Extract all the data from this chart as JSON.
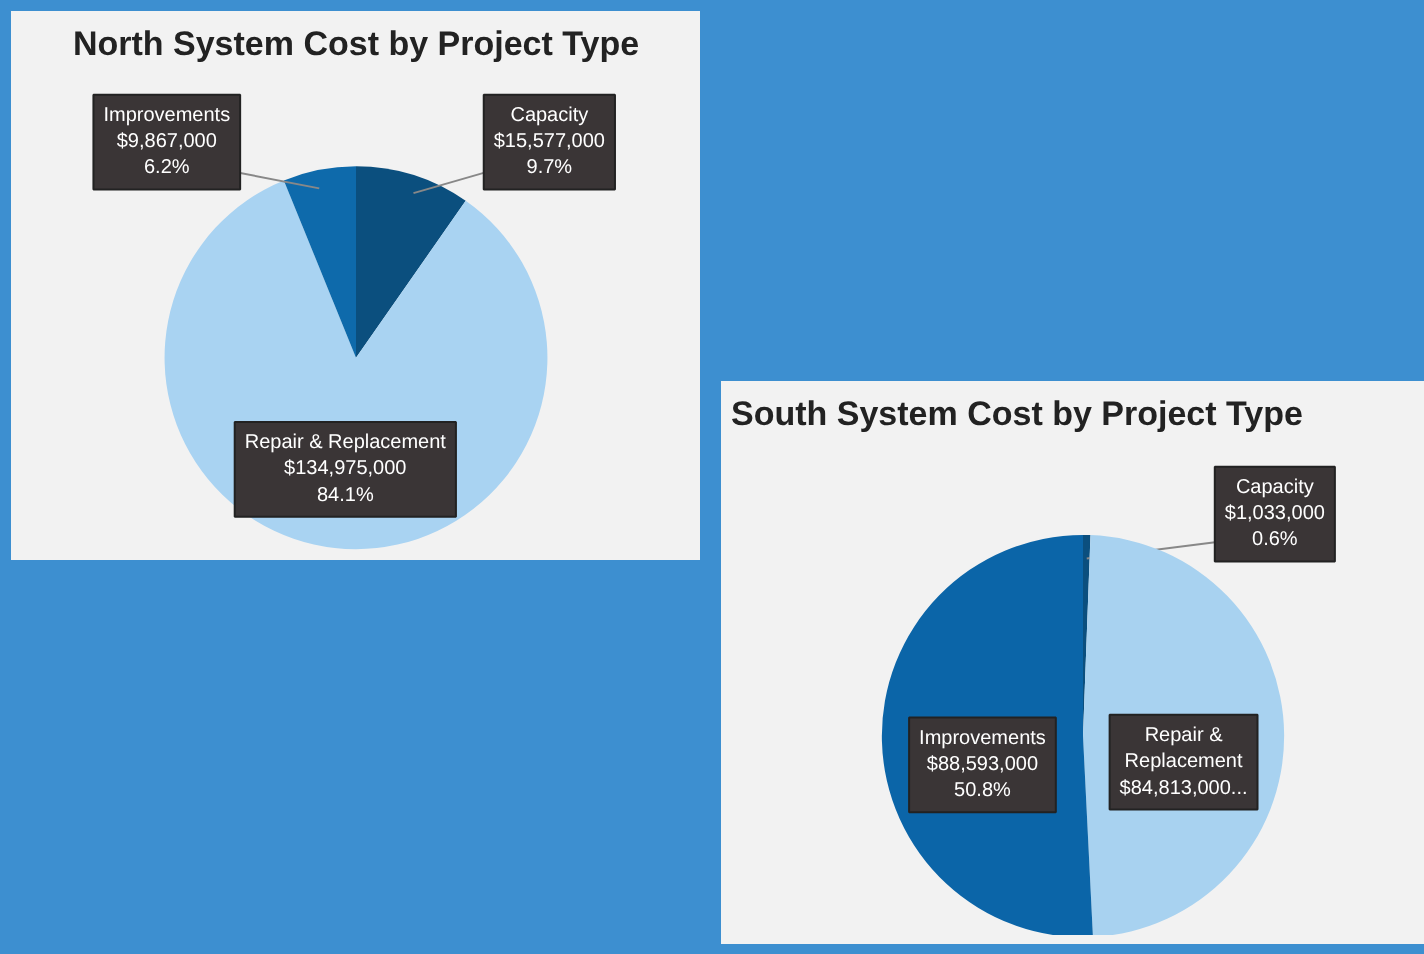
{
  "chart_data": [
    {
      "type": "pie",
      "title": "North System Cost by Project Type",
      "categories": [
        "Capacity",
        "Repair & Replacement",
        "Improvements"
      ],
      "values": [
        15577000,
        134975000,
        9867000
      ],
      "colors": [
        "#0b4f7e",
        "#a9d3f2",
        "#0e6aab"
      ],
      "value_labels": [
        "$15,577,000\n9.7%",
        "$134,975,000\n84.1%",
        "$9,867,000\n6.2%"
      ]
    },
    {
      "type": "pie",
      "title": "South System Cost by Project Type",
      "categories": [
        "Capacity",
        "Repair &\nReplacement",
        "Improvements"
      ],
      "values": [
        1033000,
        84813000,
        88593000
      ],
      "colors": [
        "#0b4f7e",
        "#a8d2f0",
        "#0b65a8"
      ],
      "value_labels": [
        "$1,033,000\n0.6%",
        "$84,813,000...",
        "$88,593,000\n50.8%"
      ]
    }
  ]
}
